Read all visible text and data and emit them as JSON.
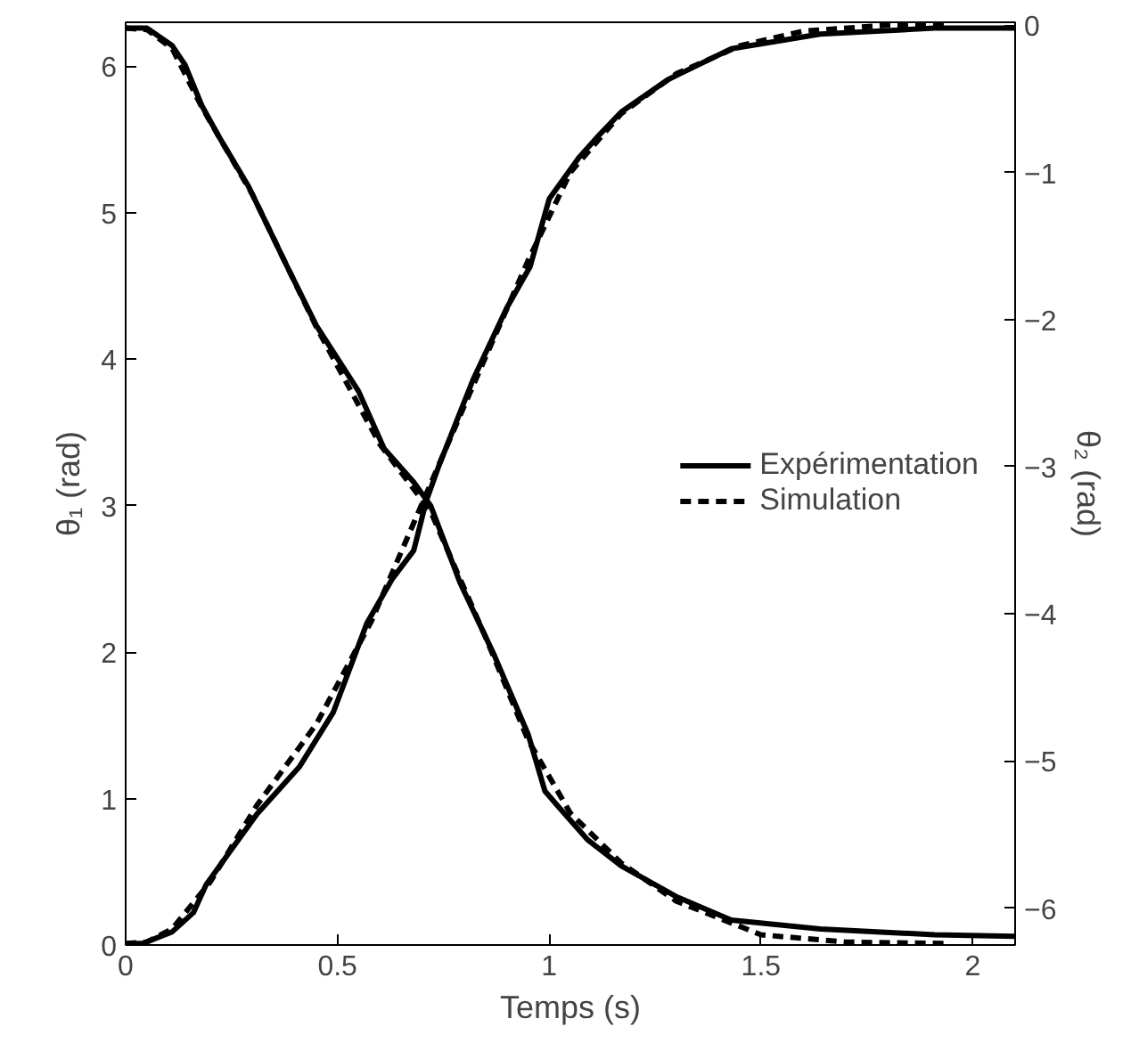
{
  "chart_data": {
    "type": "line",
    "xlabel": "Temps (s)",
    "ylabel": "θ₁ (rad)",
    "y2label": "θ₂ (rad)",
    "xlim": [
      0,
      2.1
    ],
    "xticks": [
      0,
      0.5,
      1,
      1.5,
      2
    ],
    "ylim": [
      0,
      6.3
    ],
    "yticks": [
      0,
      1,
      2,
      3,
      4,
      5,
      6
    ],
    "y2lim": [
      -6.25,
      0.02
    ],
    "y2ticks": [
      -6,
      -5,
      -4,
      -3,
      -2,
      -1,
      0
    ],
    "grid": false,
    "legend": "right",
    "marker": "none",
    "series": [
      {
        "name": "Expérimentation",
        "color": "#000000",
        "line_style": "solid",
        "x": [
          0,
          0.05,
          0.11,
          0.14,
          0.18,
          0.22,
          0.29,
          0.38,
          0.45,
          0.55,
          0.61,
          0.68,
          0.72,
          0.79,
          0.87,
          0.95,
          0.99,
          1.02,
          1.09,
          1.17,
          1.3,
          1.43,
          1.64,
          1.91,
          2.1
        ],
        "values": [
          6.26,
          6.26,
          6.14,
          6.01,
          5.73,
          5.52,
          5.18,
          4.64,
          4.23,
          3.78,
          3.39,
          3.16,
          3.0,
          2.47,
          1.98,
          1.44,
          1.05,
          0.95,
          0.72,
          0.54,
          0.33,
          0.17,
          0.11,
          0.07,
          0.06
        ]
      },
      {
        "name": "Simulation",
        "color": "#000000",
        "line_style": "dashed",
        "x": [
          0,
          0.05,
          0.11,
          0.18,
          0.3,
          0.45,
          0.6,
          0.72,
          0.85,
          0.95,
          1.05,
          1.17,
          1.3,
          1.5,
          1.7,
          1.94
        ],
        "values": [
          6.26,
          6.25,
          6.12,
          5.72,
          5.12,
          4.22,
          3.42,
          2.96,
          2.1,
          1.4,
          0.9,
          0.56,
          0.3,
          0.07,
          0.02,
          0.01
        ]
      },
      {
        "color": "#000000",
        "line_style": "solid",
        "axis": "y2",
        "x": [
          0,
          0.04,
          0.11,
          0.16,
          0.19,
          0.31,
          0.41,
          0.49,
          0.57,
          0.63,
          0.68,
          0.71,
          0.74,
          0.82,
          0.9,
          0.955,
          1.0,
          1.07,
          1.12,
          1.17,
          1.28,
          1.43,
          1.64,
          1.91,
          2.1
        ],
        "values": [
          -6.24,
          -6.24,
          -6.16,
          -6.03,
          -5.84,
          -5.36,
          -5.04,
          -4.67,
          -4.06,
          -3.76,
          -3.57,
          -3.23,
          -2.99,
          -2.41,
          -1.92,
          -1.64,
          -1.18,
          -0.9,
          -0.74,
          -0.59,
          -0.37,
          -0.16,
          -0.06,
          -0.02,
          -0.02
        ]
      },
      {
        "color": "#000000",
        "line_style": "dashed",
        "axis": "y2",
        "x": [
          0,
          0.05,
          0.11,
          0.2,
          0.31,
          0.45,
          0.58,
          0.7,
          0.82,
          0.95,
          1.05,
          1.17,
          1.3,
          1.45,
          1.6,
          1.8,
          1.94
        ],
        "values": [
          -6.24,
          -6.23,
          -6.14,
          -5.82,
          -5.3,
          -4.75,
          -4.05,
          -3.25,
          -2.45,
          -1.6,
          -1.0,
          -0.6,
          -0.33,
          -0.14,
          -0.04,
          0.0,
          0.0
        ]
      }
    ]
  }
}
